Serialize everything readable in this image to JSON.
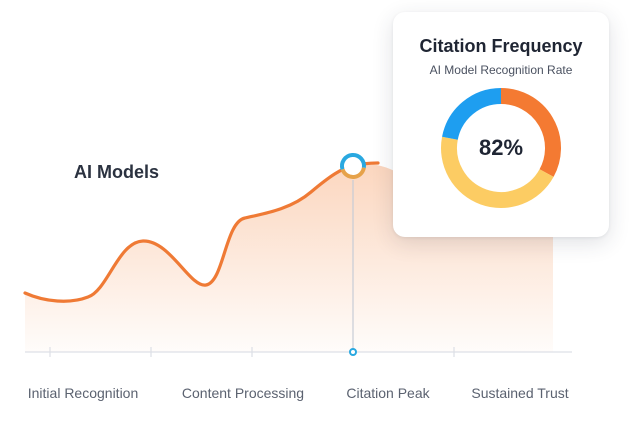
{
  "chart_data": [
    {
      "type": "area",
      "categories": [
        "Initial Recognition",
        "Content Processing",
        "Citation Peak",
        "Sustained Trust"
      ],
      "series_label": "AI Models",
      "highlight_category": "Citation Peak",
      "colors": {
        "line": "#ef7a35",
        "fill_top": "#f8b58a",
        "marker_ring_a": "#29a8e0",
        "marker_ring_b": "#e6a24a",
        "guide": "#c7ccd6",
        "axis": "#dde0e6"
      }
    },
    {
      "type": "pie",
      "title": "Citation Frequency",
      "subtitle": "AI Model Recognition Rate",
      "value_label": "82%",
      "segments": [
        {
          "share": 0.33,
          "color": "#f47a32"
        },
        {
          "share": 0.45,
          "color": "#fccc63"
        },
        {
          "share": 0.22,
          "color": "#1e9ef0"
        }
      ]
    }
  ]
}
